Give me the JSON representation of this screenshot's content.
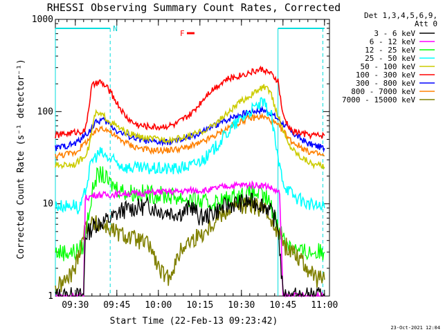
{
  "chart_data": {
    "type": "line",
    "title": "RHESSI Observing Summary Count Rates, Corrected",
    "xlabel": "Start Time (22-Feb-13 09:23:42)",
    "ylabel": "Corrected Count Rate (s⁻¹ detector⁻¹)",
    "yscale": "log",
    "ylim": [
      1,
      1000
    ],
    "y_ticks": [
      {
        "v": 1,
        "label": "1"
      },
      {
        "v": 10,
        "label": "10"
      },
      {
        "v": 100,
        "label": "100"
      },
      {
        "v": 1000,
        "label": "1000"
      }
    ],
    "xlim_minutes": [
      9.38,
      11.03
    ],
    "x_ticks": [
      {
        "t": 9.5,
        "label": "09:30"
      },
      {
        "t": 9.75,
        "label": "09:45"
      },
      {
        "t": 10.0,
        "label": "10:00"
      },
      {
        "t": 10.25,
        "label": "10:15"
      },
      {
        "t": 10.5,
        "label": "10:30"
      },
      {
        "t": 10.75,
        "label": "10:45"
      },
      {
        "t": 11.0,
        "label": "11:00"
      }
    ],
    "legend": {
      "header1": "Det 1,3,4,5,6,9,",
      "header2": "Att 0",
      "placement": "right"
    },
    "annotations": {
      "night_label": "N",
      "flare_label": "F",
      "night_intervals": [
        [
          9.38,
          9.71
        ],
        [
          10.72,
          11.0
        ]
      ],
      "saa_dashed": [
        9.71,
        10.99
      ]
    },
    "series": [
      {
        "name": "3 - 6 keV",
        "color": "#000000",
        "points": [
          [
            9.38,
            1.0
          ],
          [
            9.55,
            1.0
          ],
          [
            9.56,
            4.5
          ],
          [
            9.62,
            6.0
          ],
          [
            9.68,
            6.5
          ],
          [
            9.72,
            7.0
          ],
          [
            9.78,
            8.5
          ],
          [
            9.85,
            9.0
          ],
          [
            9.95,
            9.5
          ],
          [
            10.0,
            8.5
          ],
          [
            10.1,
            8.0
          ],
          [
            10.15,
            8.0
          ],
          [
            10.2,
            9.5
          ],
          [
            10.25,
            7.0
          ],
          [
            10.3,
            7.5
          ],
          [
            10.38,
            9.0
          ],
          [
            10.45,
            10.0
          ],
          [
            10.55,
            10.5
          ],
          [
            10.62,
            10.0
          ],
          [
            10.66,
            9.0
          ],
          [
            10.72,
            6.0
          ],
          [
            10.75,
            1.0
          ],
          [
            11.0,
            1.0
          ]
        ]
      },
      {
        "name": "6 - 12 keV",
        "color": "#ff00ff",
        "points": [
          [
            9.38,
            1.0
          ],
          [
            9.55,
            1.0
          ],
          [
            9.56,
            11.5
          ],
          [
            9.62,
            12.5
          ],
          [
            9.7,
            12.5
          ],
          [
            9.8,
            13.0
          ],
          [
            9.9,
            13.0
          ],
          [
            10.0,
            13.5
          ],
          [
            10.1,
            13.5
          ],
          [
            10.2,
            14.0
          ],
          [
            10.3,
            14.0
          ],
          [
            10.4,
            15.5
          ],
          [
            10.5,
            16.0
          ],
          [
            10.6,
            16.0
          ],
          [
            10.66,
            15.5
          ],
          [
            10.73,
            13.0
          ],
          [
            10.75,
            1.0
          ],
          [
            11.0,
            1.0
          ]
        ]
      },
      {
        "name": "12 - 25 keV",
        "color": "#00ff00",
        "points": [
          [
            9.38,
            3.0
          ],
          [
            9.5,
            3.0
          ],
          [
            9.55,
            3.5
          ],
          [
            9.58,
            8.0
          ],
          [
            9.62,
            19.0
          ],
          [
            9.66,
            21.0
          ],
          [
            9.7,
            17.0
          ],
          [
            9.75,
            15.0
          ],
          [
            9.8,
            13.5
          ],
          [
            9.9,
            13.0
          ],
          [
            10.0,
            12.5
          ],
          [
            10.1,
            12.0
          ],
          [
            10.2,
            11.0
          ],
          [
            10.3,
            10.0
          ],
          [
            10.4,
            11.0
          ],
          [
            10.5,
            12.5
          ],
          [
            10.6,
            13.0
          ],
          [
            10.66,
            11.0
          ],
          [
            10.72,
            6.0
          ],
          [
            10.76,
            4.0
          ],
          [
            10.85,
            3.0
          ],
          [
            11.0,
            3.0
          ]
        ]
      },
      {
        "name": "25 - 50 keV",
        "color": "#00ffff",
        "points": [
          [
            9.38,
            9.5
          ],
          [
            9.45,
            9.5
          ],
          [
            9.5,
            10.0
          ],
          [
            9.52,
            8.0
          ],
          [
            9.55,
            11.5
          ],
          [
            9.6,
            30.0
          ],
          [
            9.65,
            36.0
          ],
          [
            9.7,
            31.0
          ],
          [
            9.75,
            28.0
          ],
          [
            9.8,
            25.0
          ],
          [
            9.9,
            24.0
          ],
          [
            10.0,
            24.0
          ],
          [
            10.1,
            24.0
          ],
          [
            10.2,
            26.0
          ],
          [
            10.3,
            33.0
          ],
          [
            10.4,
            55.0
          ],
          [
            10.5,
            85.0
          ],
          [
            10.58,
            110.0
          ],
          [
            10.63,
            125.0
          ],
          [
            10.68,
            90.0
          ],
          [
            10.72,
            30.0
          ],
          [
            10.76,
            16.0
          ],
          [
            10.82,
            12.0
          ],
          [
            10.9,
            10.0
          ],
          [
            11.0,
            9.0
          ]
        ]
      },
      {
        "name": "50 - 100 keV",
        "color": "#cccc00",
        "points": [
          [
            9.38,
            26.0
          ],
          [
            9.5,
            27.0
          ],
          [
            9.55,
            32.0
          ],
          [
            9.58,
            40.0
          ],
          [
            9.62,
            95.0
          ],
          [
            9.67,
            90.0
          ],
          [
            9.72,
            75.0
          ],
          [
            9.8,
            60.0
          ],
          [
            9.9,
            52.0
          ],
          [
            10.0,
            50.0
          ],
          [
            10.1,
            50.0
          ],
          [
            10.2,
            55.0
          ],
          [
            10.3,
            65.0
          ],
          [
            10.4,
            90.0
          ],
          [
            10.5,
            130.0
          ],
          [
            10.58,
            160.0
          ],
          [
            10.63,
            185.0
          ],
          [
            10.67,
            170.0
          ],
          [
            10.72,
            90.0
          ],
          [
            10.78,
            45.0
          ],
          [
            10.85,
            33.0
          ],
          [
            10.93,
            27.0
          ],
          [
            11.0,
            25.0
          ]
        ]
      },
      {
        "name": "100 - 300 keV",
        "color": "#ff0000",
        "points": [
          [
            9.38,
            55.0
          ],
          [
            9.5,
            60.0
          ],
          [
            9.56,
            62.0
          ],
          [
            9.6,
            190.0
          ],
          [
            9.65,
            210.0
          ],
          [
            9.7,
            175.0
          ],
          [
            9.75,
            125.0
          ],
          [
            9.8,
            90.0
          ],
          [
            9.85,
            75.0
          ],
          [
            9.9,
            70.0
          ],
          [
            10.0,
            68.0
          ],
          [
            10.1,
            72.0
          ],
          [
            10.2,
            95.0
          ],
          [
            10.3,
            160.0
          ],
          [
            10.4,
            220.0
          ],
          [
            10.5,
            250.0
          ],
          [
            10.58,
            275.0
          ],
          [
            10.63,
            290.0
          ],
          [
            10.67,
            260.0
          ],
          [
            10.72,
            215.0
          ],
          [
            10.75,
            90.0
          ],
          [
            10.8,
            62.0
          ],
          [
            10.9,
            56.0
          ],
          [
            11.0,
            55.0
          ]
        ]
      },
      {
        "name": "300 - 800 keV",
        "color": "#0000ff",
        "points": [
          [
            9.38,
            40.0
          ],
          [
            9.5,
            45.0
          ],
          [
            9.58,
            60.0
          ],
          [
            9.62,
            75.0
          ],
          [
            9.66,
            82.0
          ],
          [
            9.7,
            75.0
          ],
          [
            9.75,
            62.0
          ],
          [
            9.85,
            52.0
          ],
          [
            9.95,
            47.0
          ],
          [
            10.05,
            46.0
          ],
          [
            10.15,
            50.0
          ],
          [
            10.25,
            58.0
          ],
          [
            10.35,
            72.0
          ],
          [
            10.45,
            88.0
          ],
          [
            10.55,
            100.0
          ],
          [
            10.63,
            105.0
          ],
          [
            10.68,
            95.0
          ],
          [
            10.74,
            78.0
          ],
          [
            10.8,
            60.0
          ],
          [
            10.9,
            45.0
          ],
          [
            11.0,
            40.0
          ]
        ]
      },
      {
        "name": "800 - 7000 keV",
        "color": "#ff8000",
        "points": [
          [
            9.38,
            33.0
          ],
          [
            9.5,
            36.0
          ],
          [
            9.58,
            50.0
          ],
          [
            9.62,
            60.0
          ],
          [
            9.66,
            68.0
          ],
          [
            9.7,
            62.0
          ],
          [
            9.75,
            52.0
          ],
          [
            9.85,
            42.0
          ],
          [
            9.95,
            38.0
          ],
          [
            10.05,
            38.0
          ],
          [
            10.15,
            40.0
          ],
          [
            10.25,
            45.0
          ],
          [
            10.35,
            56.0
          ],
          [
            10.45,
            72.0
          ],
          [
            10.55,
            85.0
          ],
          [
            10.63,
            88.0
          ],
          [
            10.68,
            80.0
          ],
          [
            10.74,
            65.0
          ],
          [
            10.8,
            48.0
          ],
          [
            10.9,
            37.0
          ],
          [
            11.0,
            33.0
          ]
        ]
      },
      {
        "name": "7000 - 15000 keV",
        "color": "#808000",
        "points": [
          [
            9.38,
            1.2
          ],
          [
            9.45,
            1.5
          ],
          [
            9.5,
            2.0
          ],
          [
            9.53,
            3.5
          ],
          [
            9.56,
            5.5
          ],
          [
            9.6,
            6.0
          ],
          [
            9.65,
            6.0
          ],
          [
            9.7,
            5.5
          ],
          [
            9.75,
            4.8
          ],
          [
            9.8,
            4.5
          ],
          [
            9.88,
            4.0
          ],
          [
            9.95,
            3.5
          ],
          [
            10.0,
            2.0
          ],
          [
            10.05,
            1.5
          ],
          [
            10.1,
            2.2
          ],
          [
            10.15,
            3.5
          ],
          [
            10.2,
            4.0
          ],
          [
            10.28,
            5.0
          ],
          [
            10.35,
            7.0
          ],
          [
            10.45,
            9.5
          ],
          [
            10.55,
            9.5
          ],
          [
            10.62,
            9.0
          ],
          [
            10.68,
            7.0
          ],
          [
            10.72,
            5.0
          ],
          [
            10.76,
            3.5
          ],
          [
            10.82,
            3.0
          ],
          [
            10.9,
            2.0
          ],
          [
            10.95,
            1.5
          ],
          [
            11.0,
            1.5
          ]
        ]
      }
    ]
  },
  "footer": {
    "timestamp": "23-Oct-2021 12:04"
  }
}
